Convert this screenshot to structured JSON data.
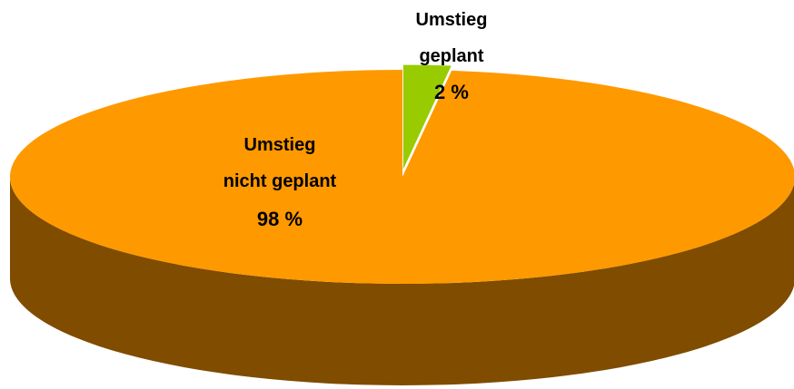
{
  "chart_data": {
    "type": "pie",
    "categories": [
      "Umstieg geplant",
      "Umstieg nicht geplant"
    ],
    "values": [
      2,
      98
    ],
    "value_labels": [
      "2 %",
      "98 %"
    ],
    "colors": [
      "#99cc00",
      "#ff9900"
    ],
    "side_colors": [
      "#5c7a00",
      "#7f4c00"
    ]
  }
}
